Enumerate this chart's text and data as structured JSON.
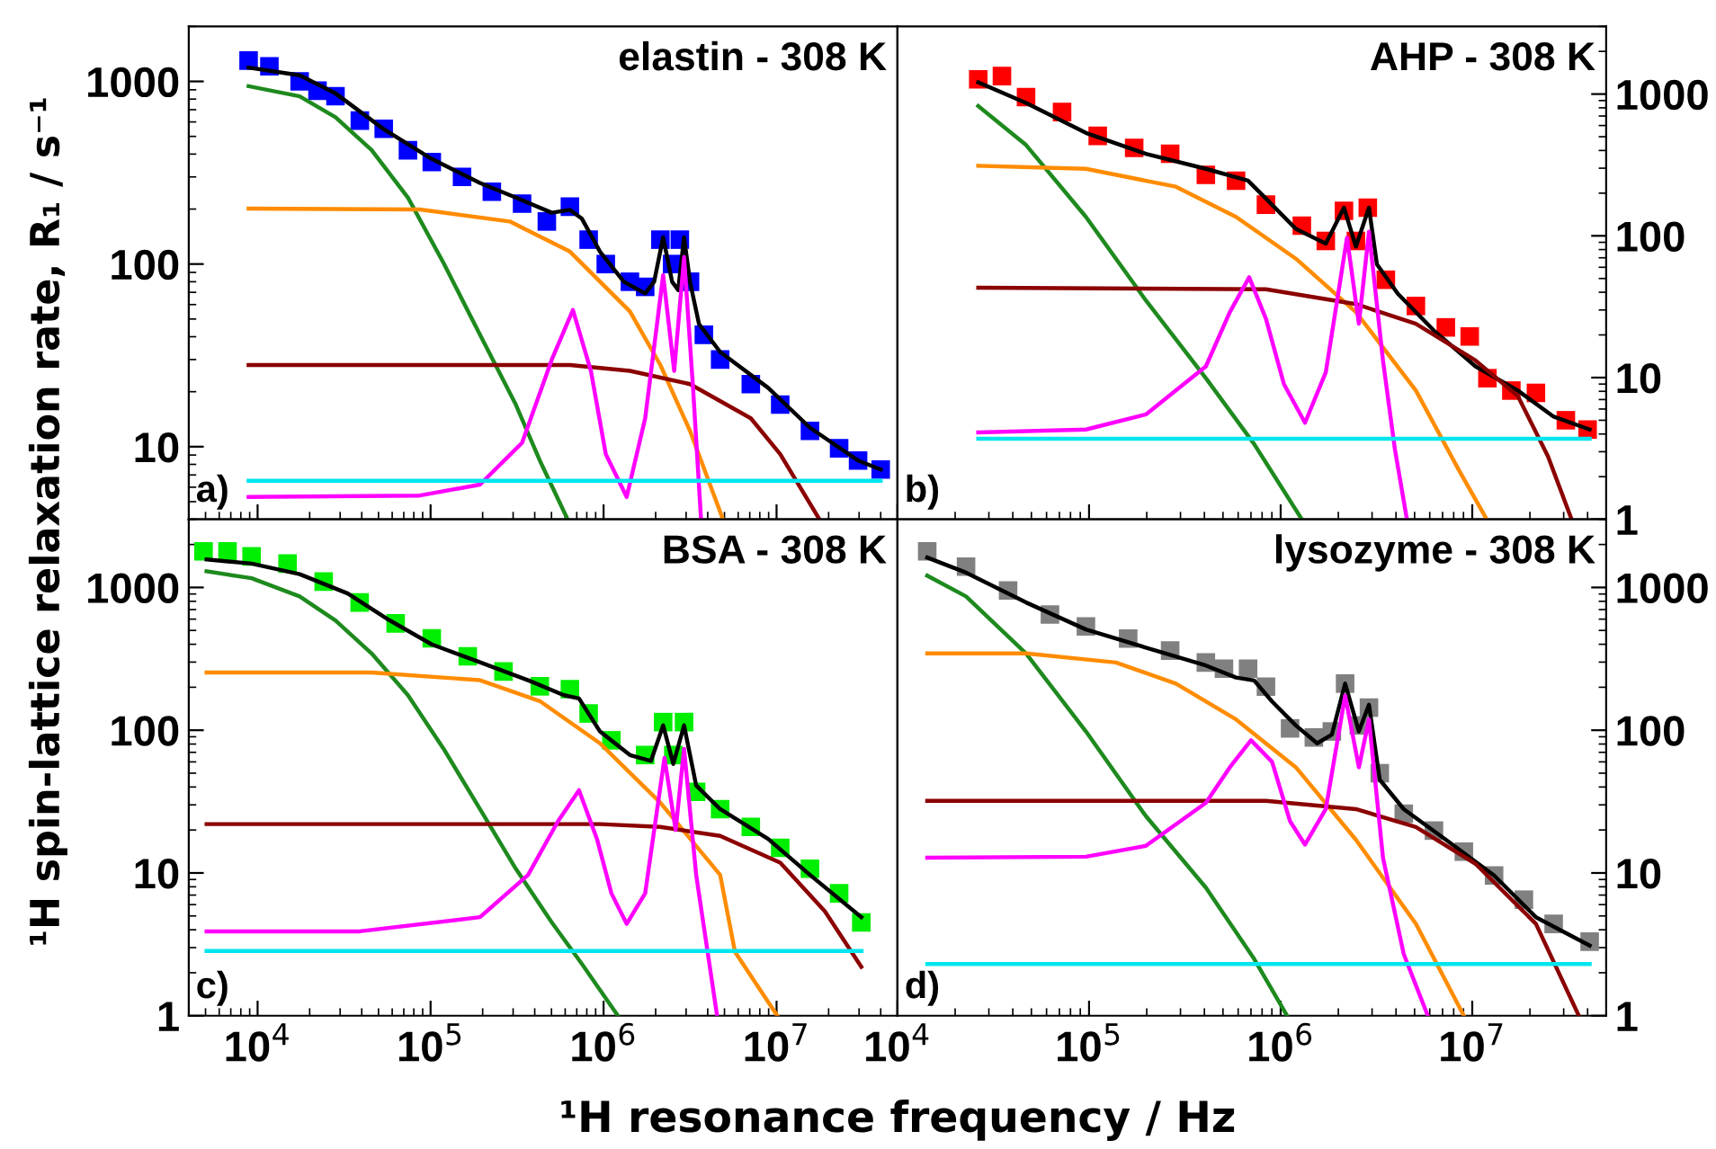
{
  "chart_data": [
    {
      "type": "line",
      "title": "elastin - 308 K",
      "ylabel": "¹H spin-lattice relaxation rate, R₁ / s⁻¹",
      "annotations": [
        "a)"
      ],
      "log": "xy",
      "xlim": [
        4000,
        50000000
      ],
      "ylim": [
        4,
        2000
      ],
      "xticks": [
        {
          "value": 10000,
          "label": null
        },
        {
          "value": 100000,
          "label": null
        },
        {
          "value": 1000000,
          "label": null
        },
        {
          "value": 10000000,
          "label": null
        }
      ],
      "yticks": [
        10,
        100,
        1000
      ],
      "tick_labels": "y",
      "series": [
        {
          "type": "scatter",
          "marker": "square",
          "color": "#0000ff",
          "x": [
            8870,
            11700,
            17500,
            22200,
            28200,
            39000,
            53600,
            74000,
            101600,
            152000,
            226000,
            338000,
            470000,
            639000,
            820000,
            1030000,
            1420000,
            1740000,
            2130000,
            2490000,
            2760000,
            3160000,
            3800000,
            4720000,
            7100000,
            10500000,
            15600000,
            23000000,
            29600000,
            40000000
          ],
          "values": [
            1300,
            1210,
            1000,
            890,
            830,
            610,
            550,
            420,
            362,
            300,
            249,
            214,
            171,
            206,
            136,
            100,
            80,
            75,
            136,
            100,
            136,
            80,
            41,
            30,
            22,
            17,
            12.2,
            9.8,
            8.4,
            7.5
          ]
        },
        {
          "color": "#000000",
          "x": [
            8870,
            17500,
            28200,
            53600,
            101600,
            193000,
            311000,
            502000,
            639000,
            750000,
            953000,
            1310000,
            1740000,
            1960000,
            2210000,
            2490000,
            2700000,
            2920000,
            3160000,
            3560000,
            4720000,
            8940000,
            15600000,
            29600000,
            40000000
          ],
          "values": [
            1190,
            1080,
            860,
            548,
            376,
            278,
            231,
            191,
            198,
            177,
            117,
            80,
            69,
            80,
            140,
            80,
            72,
            140,
            80,
            47,
            33,
            21,
            12.7,
            8.4,
            7.5
          ]
        },
        {
          "color": "#1e8a1e",
          "x": [
            8870,
            17500,
            28200,
            45600,
            74000,
            119000,
            193000,
            311000,
            428000,
            612000
          ],
          "values": [
            942,
            829,
            637,
            421,
            231,
            101,
            41,
            17,
            8.4,
            4.1
          ]
        },
        {
          "color": "#ff8c00",
          "x": [
            8870,
            86600,
            287000,
            639000,
            1420000,
            2130000,
            3160000,
            4900000
          ],
          "values": [
            201,
            199,
            171,
            117,
            55,
            28,
            12.2,
            4.0
          ]
        },
        {
          "color": "#8b0000",
          "x": [
            8870,
            639000,
            1420000,
            3160000,
            7100000,
            10500000,
            17700000
          ],
          "values": [
            28,
            28,
            26,
            22,
            14.3,
            9.1,
            4.0
          ]
        },
        {
          "color": "#ff00ff",
          "x": [
            8870,
            86600,
            193000,
            338000,
            502000,
            665000,
            845000,
            1030000,
            1360000,
            1740000,
            2210000,
            2560000,
            2920000,
            3290000,
            3660000
          ],
          "values": [
            5.3,
            5.4,
            6.2,
            10.5,
            30,
            56,
            26,
            9.1,
            5.3,
            14.3,
            87,
            26,
            109,
            21,
            4.0
          ]
        },
        {
          "color": "#00e5ee",
          "x": [
            8870,
            40000000
          ],
          "values": [
            6.5,
            6.5
          ]
        }
      ]
    },
    {
      "type": "line",
      "title": "AHP - 308 K",
      "annotations": [
        "b)"
      ],
      "log": "xy",
      "xlim": [
        10000,
        50000000
      ],
      "ylim": [
        1,
        3000
      ],
      "xticks": [
        {
          "value": 10000,
          "label": null
        },
        {
          "value": 100000,
          "label": null
        },
        {
          "value": 1000000,
          "label": null
        },
        {
          "value": 10000000,
          "label": null
        }
      ],
      "yticks": [
        1,
        10,
        100,
        1000
      ],
      "tick_labels": "y",
      "series": [
        {
          "type": "scatter",
          "marker": "square",
          "color": "#ff0000",
          "x": [
            26400,
            35100,
            46900,
            72300,
            111000,
            172000,
            265000,
            407000,
            585000,
            838000,
            1290000,
            1720000,
            2140000,
            2470000,
            2850000,
            3540000,
            5080000,
            7280000,
            9700000,
            12000000,
            16000000,
            21500000,
            30800000,
            40000000
          ],
          "values": [
            1270,
            1340,
            952,
            747,
            507,
            417,
            379,
            269,
            245,
            166,
            118,
            92,
            150,
            92,
            158,
            49,
            32,
            22.6,
            19.5,
            9.9,
            8.1,
            7.8,
            5.0,
            4.3
          ]
        },
        {
          "color": "#000000",
          "x": [
            26400,
            46900,
            96300,
            198000,
            407000,
            675000,
            838000,
            1200000,
            1720000,
            2140000,
            2470000,
            2890000,
            3180000,
            4090000,
            6300000,
            10400000,
            17300000,
            26600000,
            41000000
          ],
          "values": [
            1210,
            865,
            532,
            379,
            297,
            245,
            183,
            112,
            88,
            158,
            84,
            158,
            63,
            39,
            21.5,
            12.0,
            8.1,
            5.3,
            4.3
          ]
        },
        {
          "color": "#1e8a1e",
          "x": [
            26400,
            46900,
            96300,
            198000,
            407000,
            727000,
            1290000
          ],
          "values": [
            824,
            437,
            136,
            35,
            9.9,
            3.4,
            1.0
          ]
        },
        {
          "color": "#ff8c00",
          "x": [
            26400,
            96300,
            284000,
            585000,
            1200000,
            2470000,
            5080000,
            8400000,
            11900000
          ],
          "values": [
            312,
            297,
            222,
            136,
            69,
            29,
            8.1,
            2.3,
            1.0
          ]
        },
        {
          "color": "#8b0000",
          "x": [
            26400,
            838000,
            2470000,
            5080000,
            10400000,
            17300000,
            24800000,
            33000000
          ],
          "values": [
            43,
            42,
            33,
            24,
            13.2,
            7.4,
            2.8,
            1.0
          ]
        },
        {
          "color": "#ff00ff",
          "x": [
            26400,
            96300,
            198000,
            407000,
            543000,
            685000,
            838000,
            1040000,
            1340000,
            1720000,
            2220000,
            2560000,
            2890000,
            3420000,
            3950000,
            4560000
          ],
          "values": [
            4.1,
            4.3,
            5.5,
            12.0,
            29,
            51,
            26,
            9.0,
            4.8,
            10.9,
            97,
            24,
            107,
            13.2,
            3.1,
            1.0
          ]
        },
        {
          "color": "#00e5ee",
          "x": [
            26400,
            41000000
          ],
          "values": [
            3.7,
            3.7
          ]
        }
      ]
    },
    {
      "type": "line",
      "title": "BSA - 308 K",
      "xlabel": "¹H resonance frequency / Hz",
      "annotations": [
        "c)"
      ],
      "log": "xy",
      "xlim": [
        4000,
        50000000
      ],
      "ylim": [
        1,
        3000
      ],
      "xticks": [
        {
          "value": 10000,
          "label": "10$^{4}$"
        },
        {
          "value": 100000,
          "label": "10$^{5}$"
        },
        {
          "value": 1000000,
          "label": "10$^{6}$"
        },
        {
          "value": 10000000,
          "label": "10$^{7}$"
        }
      ],
      "yticks": [
        1,
        10,
        100,
        1000
      ],
      "series": [
        {
          "type": "scatter",
          "marker": "square",
          "color": "#00ee00",
          "x": [
            4870,
            6700,
            9230,
            14900,
            24100,
            38900,
            62800,
            101600,
            164000,
            264000,
            428000,
            639000,
            820000,
            1110000,
            1740000,
            2210000,
            2530000,
            2920000,
            3430000,
            4720000,
            7100000,
            10500000,
            15600000,
            23000000,
            30900000
          ],
          "values": [
            1790,
            1790,
            1650,
            1470,
            1100,
            785,
            560,
            440,
            329,
            258,
            203,
            194,
            131,
            85,
            67,
            114,
            67,
            114,
            37,
            28,
            21,
            15,
            10.7,
            7.2,
            4.5
          ]
        },
        {
          "color": "#000000",
          "x": [
            5070,
            9230,
            17500,
            33200,
            58000,
            101600,
            193000,
            366000,
            590000,
            721000,
            953000,
            1420000,
            1880000,
            2210000,
            2530000,
            2920000,
            3430000,
            4720000,
            8940000,
            15600000,
            30900000
          ],
          "values": [
            1570,
            1470,
            1240,
            908,
            588,
            399,
            299,
            224,
            176,
            167,
            98,
            67,
            61,
            108,
            58,
            108,
            41,
            28,
            17.3,
            9.7,
            4.9
          ]
        },
        {
          "color": "#1e8a1e",
          "x": [
            5070,
            9230,
            17500,
            28200,
            45600,
            74000,
            119000,
            193000,
            311000,
            502000,
            750000,
            1210000
          ],
          "values": [
            1300,
            1160,
            865,
            588,
            345,
            176,
            74,
            28,
            10.7,
            4.5,
            2.3,
            1.0
          ]
        },
        {
          "color": "#ff8c00",
          "x": [
            5070,
            45600,
            193000,
            428000,
            953000,
            2130000,
            4720000,
            5750000,
            10100000
          ],
          "values": [
            254,
            254,
            224,
            160,
            81,
            31,
            9.7,
            2.8,
            1.0
          ]
        },
        {
          "color": "#8b0000",
          "x": [
            5070,
            953000,
            2130000,
            4720000,
            10500000,
            19000000,
            30900000
          ],
          "values": [
            22,
            22,
            21,
            18.2,
            11.8,
            5.4,
            2.2
          ]
        },
        {
          "color": "#ff00ff",
          "x": [
            5070,
            38900,
            193000,
            366000,
            545000,
            721000,
            916000,
            1110000,
            1360000,
            1740000,
            2250000,
            2610000,
            2920000,
            3430000,
            4530000
          ],
          "values": [
            3.9,
            3.9,
            4.9,
            9.7,
            23,
            38,
            17.3,
            7.2,
            4.4,
            7.2,
            64,
            20,
            74,
            9.7,
            1.0
          ]
        },
        {
          "color": "#00e5ee",
          "x": [
            5070,
            31000000
          ],
          "values": [
            2.84,
            2.84
          ]
        }
      ]
    },
    {
      "type": "line",
      "title": "lysozyme - 308 K",
      "annotations": [
        "d)"
      ],
      "log": "xy",
      "xlim": [
        10000,
        50000000
      ],
      "ylim": [
        1,
        3000
      ],
      "xticks": [
        {
          "value": 10000,
          "label": "10$^{4}$"
        },
        {
          "value": 100000,
          "label": "10$^{5}$"
        },
        {
          "value": 1000000,
          "label": "10$^{6}$"
        },
        {
          "value": 10000000,
          "label": "10$^{7}$"
        }
      ],
      "yticks": [
        1,
        10,
        100,
        1000
      ],
      "series": [
        {
          "type": "scatter",
          "marker": "square",
          "color": "#808080",
          "x": [
            14300,
            22800,
            37800,
            62500,
            96300,
            160000,
            265000,
            407000,
            506000,
            676000,
            838000,
            1120000,
            1490000,
            1850000,
            2170000,
            2560000,
            2890000,
            3290000,
            4390000,
            6310000,
            9040000,
            13000000,
            18600000,
            26600000,
            41000000
          ],
          "values": [
            1790,
            1400,
            952,
            647,
            533,
            439,
            361,
            298,
            270,
            270,
            202,
            103,
            89,
            98,
            212,
            108,
            144,
            50,
            26,
            19.8,
            14.1,
            9.6,
            6.5,
            4.4,
            3.3
          ]
        },
        {
          "color": "#000000",
          "x": [
            14300,
            22800,
            46900,
            96300,
            198000,
            407000,
            585000,
            727000,
            902000,
            1200000,
            1550000,
            1850000,
            2170000,
            2560000,
            2890000,
            3290000,
            4390000,
            7280000,
            13000000,
            21500000,
            41000000
          ],
          "values": [
            1620,
            1270,
            785,
            508,
            379,
            284,
            234,
            223,
            159,
            108,
            81,
            93,
            212,
            98,
            151,
            45,
            28,
            17.1,
            9.6,
            4.9,
            3.1
          ]
        },
        {
          "color": "#1e8a1e",
          "x": [
            14300,
            22800,
            46900,
            96300,
            198000,
            407000,
            727000,
            1080000
          ],
          "values": [
            1210,
            865,
            345,
            98,
            25,
            7.9,
            2.5,
            1.0
          ]
        },
        {
          "color": "#ff8c00",
          "x": [
            14300,
            46900,
            138000,
            284000,
            585000,
            1200000,
            2470000,
            5080000,
            9040000
          ],
          "values": [
            345,
            345,
            298,
            212,
            119,
            55,
            17.1,
            4.4,
            1.0
          ]
        },
        {
          "color": "#8b0000",
          "x": [
            14300,
            838000,
            2470000,
            5080000,
            10400000,
            21500000,
            36000000
          ],
          "values": [
            32,
            32,
            28,
            21,
            11.6,
            4.4,
            1.0
          ]
        },
        {
          "color": "#ff00ff",
          "x": [
            14300,
            96300,
            198000,
            407000,
            543000,
            700000,
            902000,
            1120000,
            1340000,
            1720000,
            2170000,
            2560000,
            2890000,
            3420000,
            4390000,
            5860000
          ],
          "values": [
            12.8,
            13.0,
            15.5,
            31,
            55,
            85,
            60,
            23,
            15.8,
            28,
            175,
            55,
            119,
            12.8,
            2.7,
            1.0
          ]
        },
        {
          "color": "#00e5ee",
          "x": [
            14300,
            41000000
          ],
          "values": [
            2.3,
            2.3
          ]
        }
      ]
    }
  ]
}
